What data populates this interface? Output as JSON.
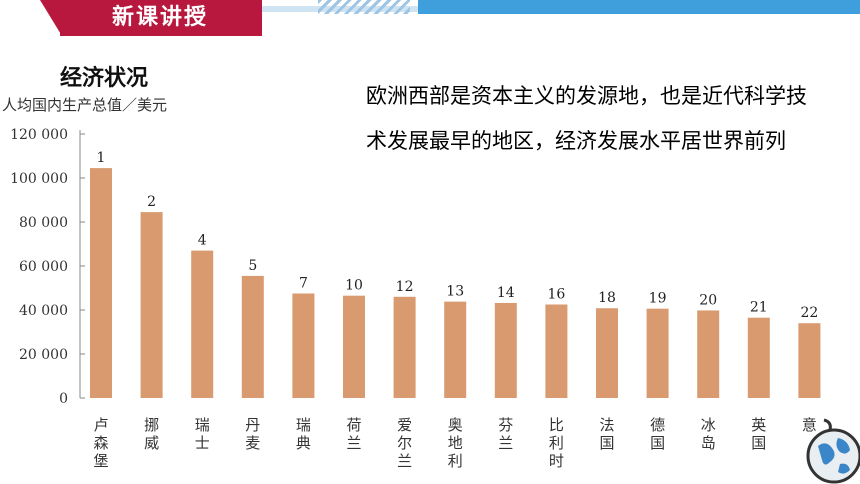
{
  "header": {
    "title": "新课讲授",
    "accent_color": "#b8183d",
    "bar_color": "#3f9fdc"
  },
  "section_title": "经济状况",
  "description": "欧洲西部是资本主义的发源地，也是近代科学技术发展最早的地区，经济发展水平居世界前列",
  "chart_data": {
    "type": "bar",
    "ylabel": "人均国内生产总值／美元",
    "ylim": [
      0,
      120000
    ],
    "yticks": [
      0,
      20000,
      40000,
      60000,
      80000,
      100000,
      120000
    ],
    "ytick_labels": [
      "0",
      "20 000",
      "40 000",
      "60 000",
      "80 000",
      "100 000",
      "120 000"
    ],
    "categories": [
      "卢森堡",
      "挪威",
      "瑞士",
      "丹麦",
      "瑞典",
      "荷兰",
      "爱尔兰",
      "奥地利",
      "芬兰",
      "比利时",
      "法国",
      "德国",
      "冰岛",
      "英国",
      "意"
    ],
    "values": [
      104500,
      84500,
      67000,
      55500,
      47500,
      46500,
      46000,
      43800,
      43200,
      42500,
      40800,
      40600,
      39800,
      36500,
      34000
    ],
    "rank_labels": [
      "1",
      "2",
      "4",
      "5",
      "7",
      "10",
      "12",
      "13",
      "14",
      "16",
      "18",
      "19",
      "20",
      "21",
      "22"
    ],
    "bar_color": "#d89a6e",
    "grid": false
  },
  "decor": {
    "globe_icon": "globe-icon"
  }
}
